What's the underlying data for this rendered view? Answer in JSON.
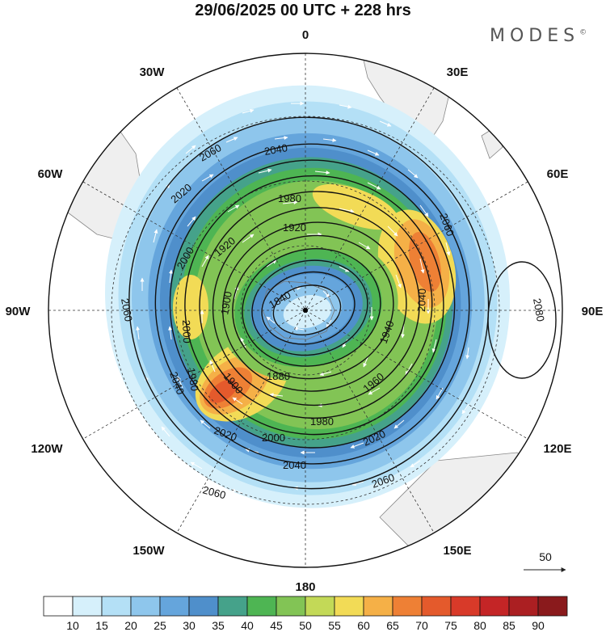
{
  "title": "29/06/2025  00 UTC  + 228 hrs",
  "brand": "MODES",
  "brand_mark": "©",
  "longitude_labels": [
    "0",
    "30E",
    "60E",
    "90E",
    "120E",
    "150E",
    "180",
    "150W",
    "120W",
    "90W",
    "60W",
    "30W"
  ],
  "contour_labels": [
    "2060",
    "2040",
    "2020",
    "2000",
    "1980",
    "1960",
    "1940",
    "1920",
    "1900",
    "1880",
    "1860",
    "1840",
    "2080"
  ],
  "vector_scale_label": "50",
  "colorbar": {
    "ticks": [
      "10",
      "15",
      "20",
      "25",
      "30",
      "35",
      "40",
      "45",
      "50",
      "55",
      "60",
      "65",
      "70",
      "75",
      "80",
      "85",
      "90"
    ],
    "colors": [
      "#ffffff",
      "#d6f0fb",
      "#b4e0f6",
      "#8ec6ec",
      "#65a5dc",
      "#4f8fcb",
      "#45a28a",
      "#4eb553",
      "#82c455",
      "#c3d957",
      "#f2db56",
      "#f5b047",
      "#ee8035",
      "#e45a2c",
      "#d83a29",
      "#c42526",
      "#ab1f22",
      "#8a1a1c"
    ]
  },
  "colors": {
    "land": "#efefef",
    "coast": "#888888",
    "contour": "#111111",
    "vector": "#ffffff"
  }
}
